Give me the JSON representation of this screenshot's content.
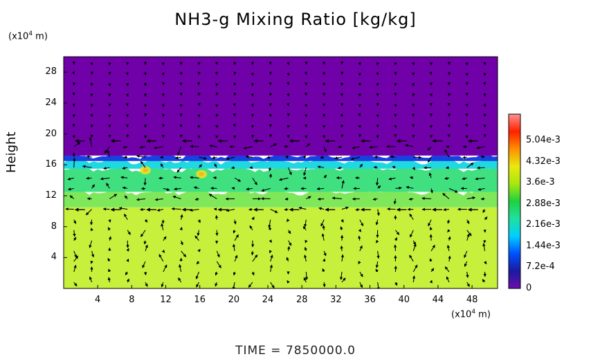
{
  "chart_data": {
    "type": "heatmap",
    "title": "NH3-g Mixing Ratio [kg/kg]",
    "ylabel": "Height",
    "y_unit": {
      "prefix": "(x10",
      "exp": "4",
      "suffix": " m)"
    },
    "x_unit": {
      "prefix": "(x10",
      "exp": "4",
      "suffix": " m)"
    },
    "xlim": [
      0,
      51
    ],
    "ylim": [
      0,
      30
    ],
    "x_ticks": [
      "4",
      "8",
      "12",
      "16",
      "20",
      "24",
      "28",
      "32",
      "36",
      "40",
      "44",
      "48"
    ],
    "y_ticks": [
      "4",
      "8",
      "12",
      "16",
      "20",
      "24",
      "28"
    ],
    "colorbar": {
      "range": [
        0,
        0.0058
      ],
      "labels": [
        "0",
        "7.2e-4",
        "1.44e-3",
        "2.16e-3",
        "2.88e-3",
        "3.6e-3",
        "4.32e-3",
        "5.04e-3"
      ],
      "colors": [
        "#6a0dad",
        "#1a1aa0",
        "#0050ff",
        "#00d0ff",
        "#20e0a0",
        "#20d040",
        "#a8e810",
        "#e8e810",
        "#ff9000",
        "#ff2000",
        "#ff9090"
      ]
    },
    "layers": [
      {
        "height_range": [
          0,
          10.5
        ],
        "value": 0.0033,
        "color": "#c6f03c"
      },
      {
        "height_range": [
          10.5,
          12.5
        ],
        "value": 0.003,
        "color": "#7ee85a"
      },
      {
        "height_range": [
          12.5,
          15.5
        ],
        "value": 0.0026,
        "color": "#40e080"
      },
      {
        "height_range": [
          15.5,
          16.5
        ],
        "value": 0.0016,
        "color": "#20d8e0"
      },
      {
        "height_range": [
          16.5,
          17.2
        ],
        "value": 0.0008,
        "color": "#1a40e0"
      },
      {
        "height_range": [
          17.2,
          30
        ],
        "value": 0.0,
        "color": "#7000a8"
      }
    ],
    "features": [
      {
        "type": "local-maximum",
        "x": 16.2,
        "y": 14.8,
        "value": 0.0042
      },
      {
        "type": "local-maximum",
        "x": 9.6,
        "y": 15.3,
        "value": 0.0038
      }
    ],
    "overlay": "wind vectors (black arrows)"
  },
  "footer": {
    "time_label": "TIME  =  7850000.0"
  },
  "colors": {
    "frame": "#000000",
    "background": "#ffffff"
  }
}
